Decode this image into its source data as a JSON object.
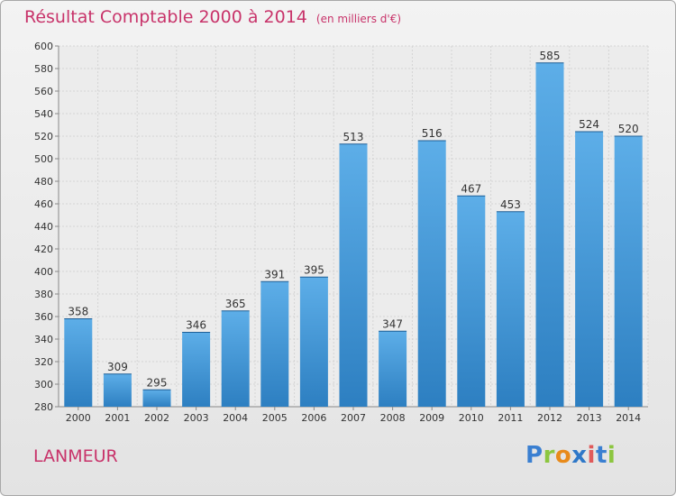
{
  "header": {
    "title": "Résultat Comptable 2000 à 2014",
    "unit": "(en milliers d'€)"
  },
  "footer": {
    "commune": "LANMEUR",
    "logo_text": "Proxiti",
    "logo_letters": [
      "P",
      "r",
      "o",
      "x",
      "i",
      "t",
      "i"
    ],
    "logo_colors": [
      "#3a7fd1",
      "#8cc63f",
      "#e88a1a",
      "#2f78c8",
      "#e05a5a",
      "#3a7fd1",
      "#8cc63f"
    ]
  },
  "colors": {
    "title": "#c8336a",
    "bar_light": "#5daee8",
    "bar_dark": "#2d7fc1",
    "grid": "#d4d4d4",
    "axis_text": "#333333"
  },
  "chart_data": {
    "type": "bar",
    "title": "Résultat Comptable 2000 à 2014",
    "subtitle": "(en milliers d'€)",
    "categories": [
      "2000",
      "2001",
      "2002",
      "2003",
      "2004",
      "2005",
      "2006",
      "2007",
      "2008",
      "2009",
      "2010",
      "2011",
      "2012",
      "2013",
      "2014"
    ],
    "values": [
      358,
      309,
      295,
      346,
      365,
      391,
      395,
      513,
      347,
      516,
      467,
      453,
      585,
      524,
      520
    ],
    "ylim": [
      280,
      600
    ],
    "yticks": [
      280,
      300,
      320,
      340,
      360,
      380,
      400,
      420,
      440,
      460,
      480,
      500,
      520,
      540,
      560,
      580,
      600
    ],
    "grid": true,
    "data_labels": true
  }
}
